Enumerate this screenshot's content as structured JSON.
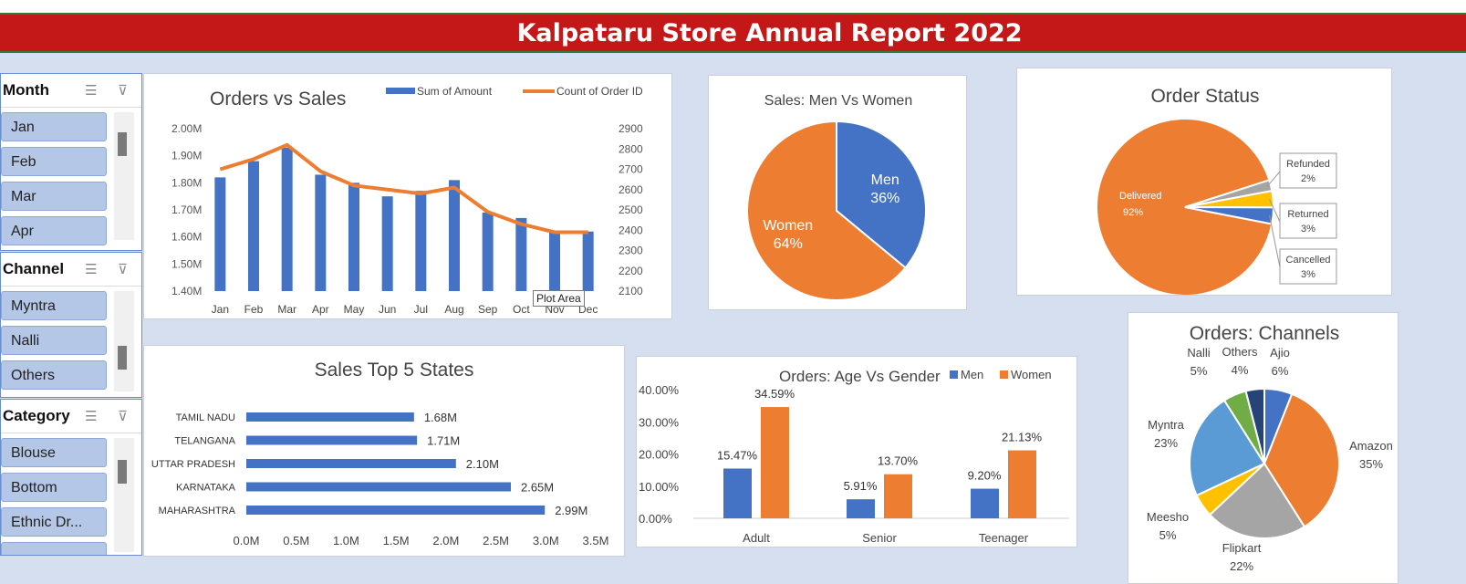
{
  "report_title": "Kalpataru Store Annual Report 2022",
  "tooltip": "Plot Area",
  "slicers": [
    {
      "title": "Month",
      "items": [
        "Jan",
        "Feb",
        "Mar",
        "Apr"
      ]
    },
    {
      "title": "Channel",
      "items": [
        "Myntra",
        "Nalli",
        "Others"
      ]
    },
    {
      "title": "Category",
      "items": [
        "Blouse",
        "Bottom",
        "Ethnic Dr..."
      ]
    }
  ],
  "slicer_icons": {
    "multiselect": "multiselect-icon",
    "clear_filter": "clear-filter-icon"
  },
  "colors": {
    "blue": "#4472c4",
    "orange": "#ed7d31",
    "gray": "#a5a5a5",
    "yellow": "#ffc000",
    "lightblue": "#5b9bd5",
    "green": "#70ad47",
    "navy": "#264478",
    "title_bar": "#c41717"
  },
  "chart_data": [
    {
      "id": "orders_vs_sales",
      "type": "bar",
      "title": "Orders vs Sales",
      "categories": [
        "Jan",
        "Feb",
        "Mar",
        "Apr",
        "May",
        "Jun",
        "Jul",
        "Aug",
        "Sep",
        "Oct",
        "Nov",
        "Dec"
      ],
      "series": [
        {
          "name": "Sum of Amount",
          "type": "bar",
          "axis": "left",
          "values": [
            1.82,
            1.88,
            1.93,
            1.83,
            1.8,
            1.75,
            1.77,
            1.81,
            1.69,
            1.67,
            1.62,
            1.62
          ]
        },
        {
          "name": "Count of Order ID",
          "type": "line",
          "axis": "right",
          "values": [
            2700,
            2750,
            2820,
            2690,
            2620,
            2600,
            2580,
            2610,
            2490,
            2430,
            2390,
            2390
          ]
        }
      ],
      "y_left_ticks": [
        "2.00M",
        "1.90M",
        "1.80M",
        "1.70M",
        "1.60M",
        "1.50M",
        "1.40M"
      ],
      "y_left_range": [
        1.4,
        2.0
      ],
      "y_right_ticks": [
        "2900",
        "2800",
        "2700",
        "2600",
        "2500",
        "2400",
        "2300",
        "2200",
        "2100"
      ],
      "y_right_range": [
        2100,
        2900
      ],
      "legend": "top-right",
      "grid": false
    },
    {
      "id": "sales_men_women",
      "type": "pie",
      "title": "Sales: Men Vs Women",
      "slices": [
        {
          "label": "Men",
          "value": 36,
          "text": "36%",
          "color": "#4472c4"
        },
        {
          "label": "Women",
          "value": 64,
          "text": "64%",
          "color": "#ed7d31"
        }
      ]
    },
    {
      "id": "order_status",
      "type": "pie",
      "title": "Order Status",
      "slices": [
        {
          "label": "Delivered",
          "value": 92,
          "text": "92%",
          "color": "#ed7d31"
        },
        {
          "label": "Refunded",
          "value": 2,
          "text": "2%",
          "color": "#a5a5a5"
        },
        {
          "label": "Returned",
          "value": 3,
          "text": "3%",
          "color": "#ffc000"
        },
        {
          "label": "Cancelled",
          "value": 3,
          "text": "3%",
          "color": "#4472c4"
        }
      ]
    },
    {
      "id": "sales_top5_states",
      "type": "bar",
      "orientation": "horizontal",
      "title": "Sales Top 5 States",
      "categories": [
        "TAMIL NADU",
        "TELANGANA",
        "UTTAR PRADESH",
        "KARNATAKA",
        "MAHARASHTRA"
      ],
      "values": [
        1.68,
        1.71,
        2.1,
        2.65,
        2.99
      ],
      "labels": [
        "1.68M",
        "1.71M",
        "2.10M",
        "2.65M",
        "2.99M"
      ],
      "x_ticks": [
        "0.0M",
        "0.5M",
        "1.0M",
        "1.5M",
        "2.0M",
        "2.5M",
        "3.0M",
        "3.5M"
      ],
      "xlim": [
        0,
        3.5
      ]
    },
    {
      "id": "orders_age_gender",
      "type": "bar",
      "title": "Orders: Age Vs Gender",
      "categories": [
        "Adult",
        "Senior",
        "Teenager"
      ],
      "series": [
        {
          "name": "Men",
          "values": [
            15.47,
            5.91,
            9.2
          ],
          "labels": [
            "15.47%",
            "5.91%",
            "9.20%"
          ],
          "color": "#4472c4"
        },
        {
          "name": "Women",
          "values": [
            34.59,
            13.7,
            21.13
          ],
          "labels": [
            "34.59%",
            "13.70%",
            "21.13%"
          ],
          "color": "#ed7d31"
        }
      ],
      "y_ticks": [
        "40.00%",
        "30.00%",
        "20.00%",
        "10.00%",
        "0.00%"
      ],
      "ylim": [
        0,
        40
      ],
      "legend": "top-right"
    },
    {
      "id": "orders_channels",
      "type": "pie",
      "title": "Orders: Channels",
      "slices": [
        {
          "label": "Ajio",
          "value": 6,
          "text": "6%",
          "color": "#4472c4"
        },
        {
          "label": "Amazon",
          "value": 35,
          "text": "35%",
          "color": "#ed7d31"
        },
        {
          "label": "Flipkart",
          "value": 22,
          "text": "22%",
          "color": "#a5a5a5"
        },
        {
          "label": "Meesho",
          "value": 5,
          "text": "5%",
          "color": "#ffc000"
        },
        {
          "label": "Myntra",
          "value": 23,
          "text": "23%",
          "color": "#5b9bd5"
        },
        {
          "label": "Nalli",
          "value": 5,
          "text": "5%",
          "color": "#70ad47"
        },
        {
          "label": "Others",
          "value": 4,
          "text": "4%",
          "color": "#264478"
        }
      ]
    }
  ]
}
